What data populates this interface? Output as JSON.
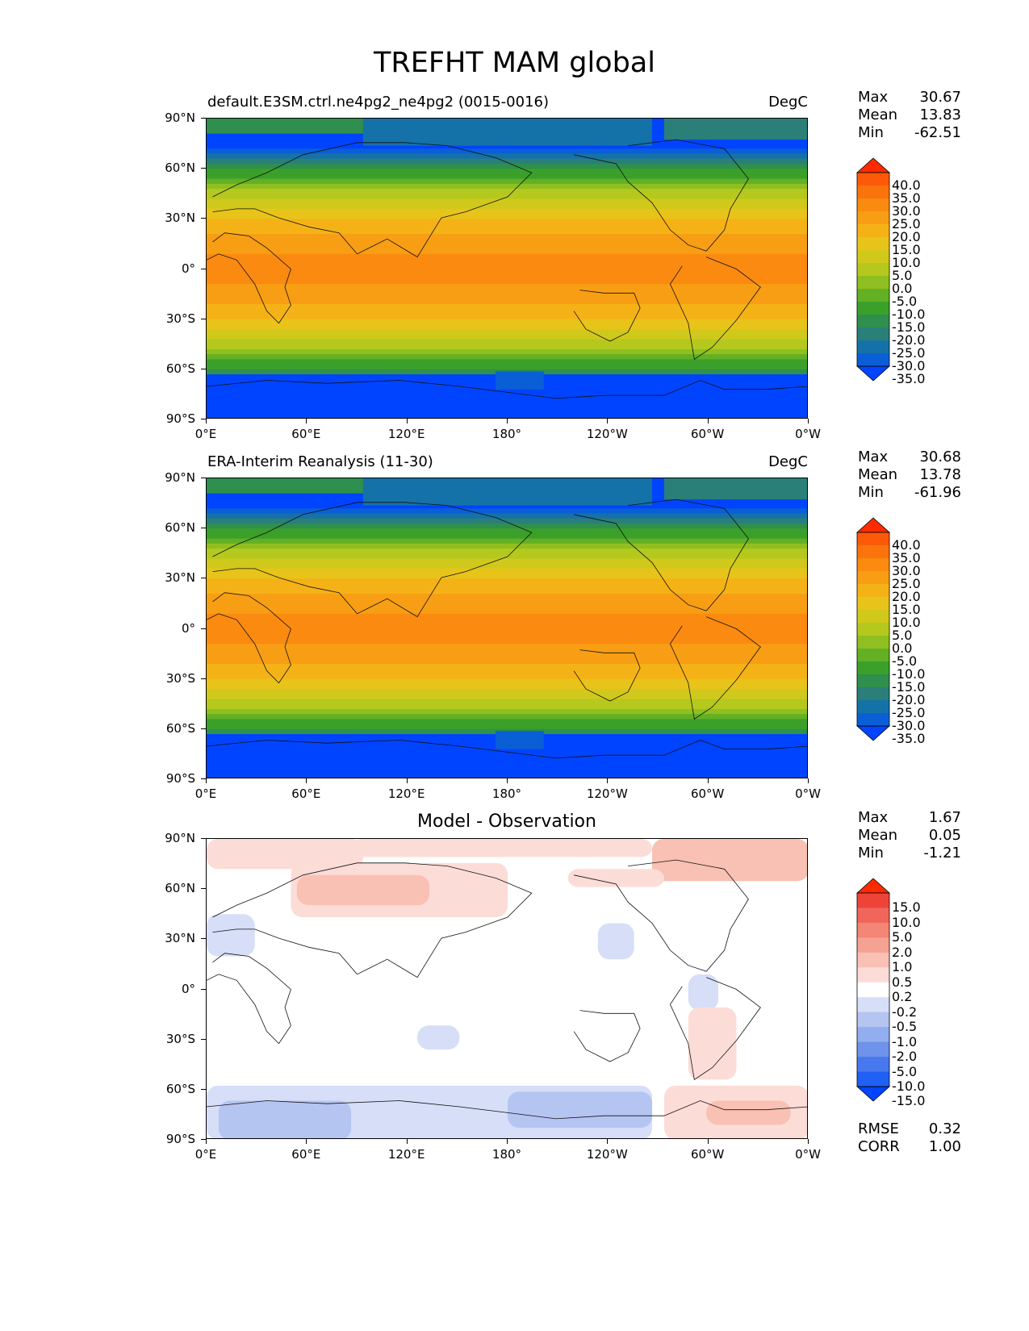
{
  "title": "TREFHT MAM global",
  "axes": {
    "lat_labels": [
      "90°N",
      "60°N",
      "30°N",
      "0°",
      "30°S",
      "60°S",
      "90°S"
    ],
    "lon_labels": [
      "0°E",
      "60°E",
      "120°E",
      "180°",
      "120°W",
      "60°W",
      "0°W"
    ]
  },
  "panels": [
    {
      "title_left": "default.E3SM.ctrl.ne4pg2_ne4pg2 (0015-0016)",
      "title_right": "DegC",
      "title_center": "",
      "stats": [
        {
          "label": "Max",
          "value": "30.67"
        },
        {
          "label": "Mean",
          "value": "13.83"
        },
        {
          "label": "Min",
          "value": "-62.51"
        }
      ],
      "colorbar_labels": [
        "40.0",
        "35.0",
        "30.0",
        "25.0",
        "20.0",
        "15.0",
        "10.0",
        "5.0",
        "0.0",
        "-5.0",
        "-10.0",
        "-15.0",
        "-20.0",
        "-25.0",
        "-30.0",
        "-35.0"
      ]
    },
    {
      "title_left": "ERA-Interim Reanalysis (11-30)",
      "title_right": "DegC",
      "title_center": "",
      "stats": [
        {
          "label": "Max",
          "value": "30.68"
        },
        {
          "label": "Mean",
          "value": "13.78"
        },
        {
          "label": "Min",
          "value": "-61.96"
        }
      ],
      "colorbar_labels": [
        "40.0",
        "35.0",
        "30.0",
        "25.0",
        "20.0",
        "15.0",
        "10.0",
        "5.0",
        "0.0",
        "-5.0",
        "-10.0",
        "-15.0",
        "-20.0",
        "-25.0",
        "-30.0",
        "-35.0"
      ]
    },
    {
      "title_left": "",
      "title_right": "",
      "title_center": "Model - Observation",
      "stats": [
        {
          "label": "Max",
          "value": "1.67"
        },
        {
          "label": "Mean",
          "value": "0.05"
        },
        {
          "label": "Min",
          "value": "-1.21"
        }
      ],
      "colorbar_labels": [
        "15.0",
        "10.0",
        "5.0",
        "2.0",
        "1.0",
        "0.5",
        "0.2",
        "-0.2",
        "-0.5",
        "-1.0",
        "-2.0",
        "-5.0",
        "-10.0",
        "-15.0"
      ],
      "metrics": [
        {
          "label": "RMSE",
          "value": "0.32"
        },
        {
          "label": "CORR",
          "value": "1.00"
        }
      ]
    }
  ],
  "colors": {
    "temp_scale": [
      "#0044ff",
      "#0a5fd6",
      "#1572a8",
      "#2a7f78",
      "#2f8f4e",
      "#3aa02a",
      "#63b024",
      "#8fbf20",
      "#b5c81e",
      "#d1c81c",
      "#e8c31a",
      "#f5b217",
      "#f89e14",
      "#fa8a10",
      "#fb730c",
      "#fc5a08",
      "#ff2a00"
    ],
    "diff_scale": [
      "#0044ff",
      "#2060f5",
      "#4878ee",
      "#6f92ea",
      "#93aeee",
      "#b5c5f2",
      "#d6def8",
      "#ffffff",
      "#fcdcd6",
      "#f9c0b4",
      "#f6a293",
      "#f38676",
      "#f0665a",
      "#ee4438",
      "#ff2a00"
    ]
  }
}
